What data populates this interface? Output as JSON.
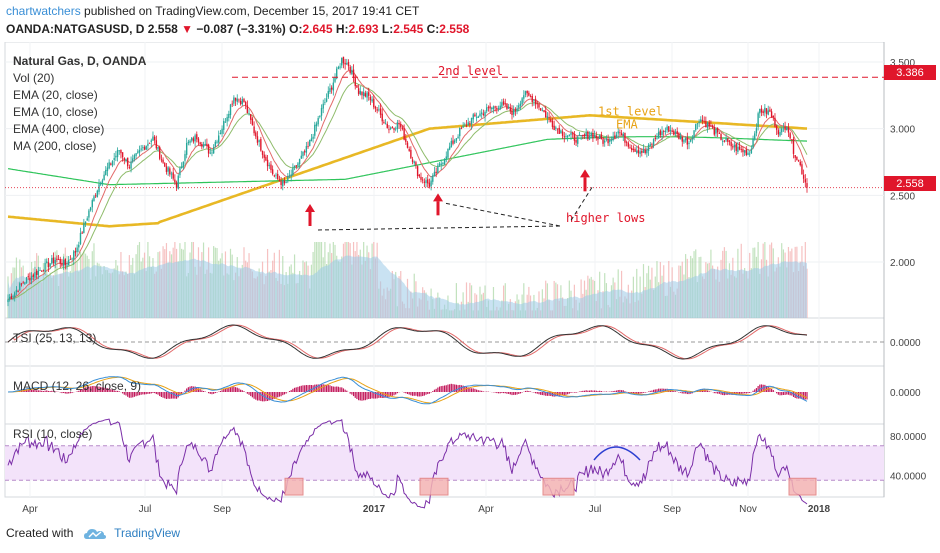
{
  "header": {
    "author": "chartwatchers",
    "published_text": "published on TradingView.com, December 15, 2017 19:41 CET",
    "symbol": "OANDA:NATGASUSD, D",
    "last": "2.558",
    "change": "−0.087 (−3.31%)",
    "o_label": "O:",
    "o_value": "2.645",
    "h_label": "H:",
    "h_value": "2.693",
    "l_label": "L:",
    "l_value": "2.545",
    "c_label": "C:",
    "c_value": "2.558"
  },
  "footer": {
    "created_with": "Created with",
    "brand": "TradingView"
  },
  "colors": {
    "up": "#26a69a",
    "down": "#e0162b",
    "ema20": "#8fbc6b",
    "ema10": "#e36a6a",
    "ema400": "#e8b825",
    "ma200": "#2ec45a",
    "volume": "#9ccbe8",
    "rsi": "#7b2fa8",
    "tsi_main": "#333333",
    "tsi_signal": "#e36a6a",
    "macd_line": "#3a8fd6",
    "macd_signal": "#e8a317",
    "macd_hist": "#c2185b",
    "annotation": "#e0162b"
  },
  "chart_data": [
    {
      "type": "candlestick",
      "title": "Natural Gas, D, OANDA",
      "legend": [
        "Natural Gas, D, OANDA",
        "Vol (20)",
        "EMA (20, close)",
        "EMA (10, close)",
        "EMA (400, close)",
        "MA (200, close)"
      ],
      "x_ticks": [
        "Apr",
        "Jul",
        "Sep",
        "2017",
        "Apr",
        "Jul",
        "Sep",
        "Nov",
        "2018"
      ],
      "y_ticks": [
        "3.500",
        "3.000",
        "2.500",
        "2.000"
      ],
      "ylim": [
        1.58,
        3.62
      ],
      "price_labels": [
        "3.386",
        "2.558"
      ],
      "keypoints_close": [
        [
          0,
          1.72
        ],
        [
          10,
          1.86
        ],
        [
          20,
          1.95
        ],
        [
          28,
          2.02
        ],
        [
          34,
          1.98
        ],
        [
          40,
          2.08
        ],
        [
          48,
          2.38
        ],
        [
          55,
          2.62
        ],
        [
          60,
          2.72
        ],
        [
          66,
          2.84
        ],
        [
          72,
          2.72
        ],
        [
          80,
          2.86
        ],
        [
          86,
          2.93
        ],
        [
          92,
          2.74
        ],
        [
          100,
          2.58
        ],
        [
          106,
          2.88
        ],
        [
          112,
          2.94
        ],
        [
          120,
          2.82
        ],
        [
          128,
          3.04
        ],
        [
          134,
          3.24
        ],
        [
          140,
          3.2
        ],
        [
          146,
          2.98
        ],
        [
          152,
          2.8
        ],
        [
          158,
          2.64
        ],
        [
          164,
          2.58
        ],
        [
          170,
          2.7
        ],
        [
          178,
          2.86
        ],
        [
          186,
          3.14
        ],
        [
          192,
          3.32
        ],
        [
          198,
          3.52
        ],
        [
          202,
          3.48
        ],
        [
          208,
          3.28
        ],
        [
          214,
          3.24
        ],
        [
          220,
          3.12
        ],
        [
          226,
          3.0
        ],
        [
          232,
          3.04
        ],
        [
          238,
          2.84
        ],
        [
          244,
          2.64
        ],
        [
          250,
          2.58
        ],
        [
          256,
          2.72
        ],
        [
          262,
          2.86
        ],
        [
          268,
          2.98
        ],
        [
          276,
          3.08
        ],
        [
          284,
          3.14
        ],
        [
          292,
          3.18
        ],
        [
          300,
          3.12
        ],
        [
          306,
          3.26
        ],
        [
          312,
          3.22
        ],
        [
          318,
          3.12
        ],
        [
          324,
          3.02
        ],
        [
          330,
          2.96
        ],
        [
          338,
          2.92
        ],
        [
          346,
          2.96
        ],
        [
          354,
          2.9
        ],
        [
          362,
          2.98
        ],
        [
          370,
          2.86
        ],
        [
          378,
          2.82
        ],
        [
          386,
          2.96
        ],
        [
          392,
          3.0
        ],
        [
          398,
          2.94
        ],
        [
          404,
          2.9
        ],
        [
          410,
          3.08
        ],
        [
          416,
          3.02
        ],
        [
          422,
          2.94
        ],
        [
          428,
          2.88
        ],
        [
          434,
          2.84
        ],
        [
          440,
          2.82
        ],
        [
          446,
          3.14
        ],
        [
          452,
          3.12
        ],
        [
          458,
          2.96
        ],
        [
          462,
          3.04
        ],
        [
          466,
          2.84
        ],
        [
          470,
          2.72
        ],
        [
          474,
          2.558
        ]
      ],
      "annotations": [
        "2nd level",
        "1st level",
        "EMA",
        "higher lows"
      ]
    },
    {
      "type": "bar",
      "title": "Vol (20)",
      "description": "daily volume bars with 20-day moving average band"
    },
    {
      "type": "line",
      "title": "TSI (25, 13, 13)",
      "y_ticks": [
        "0.0000"
      ]
    },
    {
      "type": "bar",
      "title": "MACD (12, 26, close, 9)",
      "y_ticks": [
        "0.0000"
      ]
    },
    {
      "type": "line",
      "title": "RSI (10, close)",
      "y_ticks": [
        "80.0000",
        "40.0000"
      ],
      "ylim": [
        18,
        92
      ],
      "band": [
        35,
        70
      ]
    }
  ]
}
